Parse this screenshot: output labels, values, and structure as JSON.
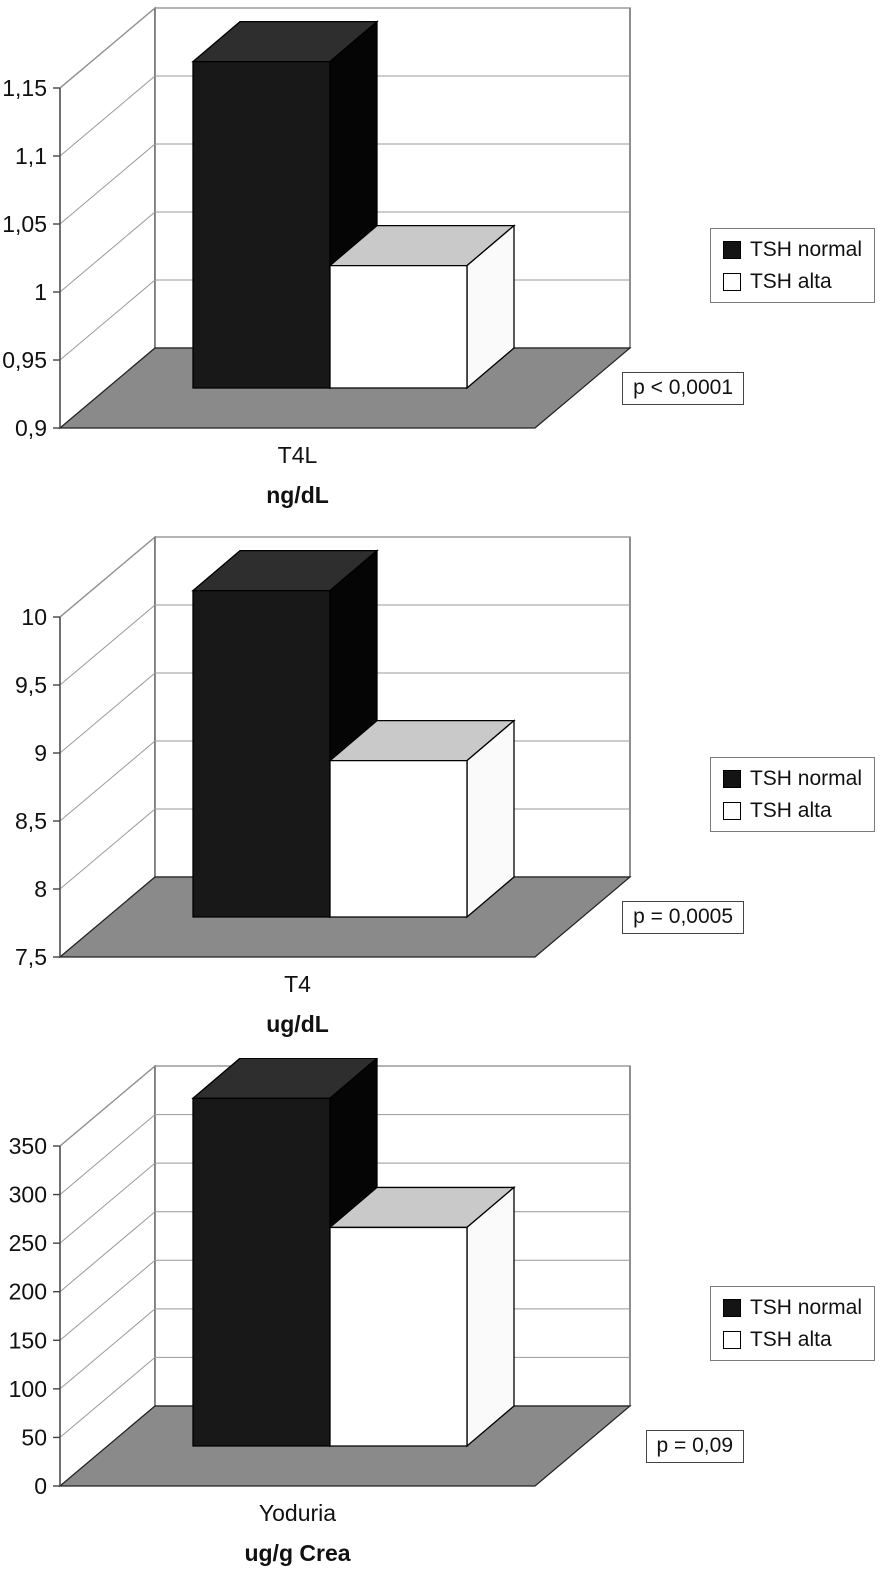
{
  "colors": {
    "background": "#ffffff",
    "floor": "#8a8a8a",
    "wall": "#ffffff",
    "grid": "#999999",
    "axis": "#444444",
    "bars": [
      {
        "front": "#181818",
        "top": "#2e2e2e",
        "side": "#050505"
      },
      {
        "front": "#ffffff",
        "top": "#c9c9c9",
        "side": "#fafafa"
      }
    ]
  },
  "chart_data": [
    {
      "type": "bar",
      "projection": "3d",
      "categories": [
        "T4L"
      ],
      "category_label": "T4L",
      "ylabel": "ng/dL",
      "ylim": [
        0.9,
        1.15
      ],
      "yticks": {
        "labels": [
          "0,9",
          "0,95",
          "1",
          "1,05",
          "1,1",
          "1,15"
        ],
        "values": [
          0.9,
          0.95,
          1,
          1.05,
          1.1,
          1.15
        ]
      },
      "series": [
        {
          "name": "TSH normal",
          "values": [
            1.14
          ]
        },
        {
          "name": "TSH alta",
          "values": [
            0.99
          ]
        }
      ],
      "annotation": "p < 0,0001",
      "legend_position": "right",
      "grid": true
    },
    {
      "type": "bar",
      "projection": "3d",
      "categories": [
        "T4"
      ],
      "category_label": "T4",
      "ylabel": "ug/dL",
      "ylim": [
        7.5,
        10
      ],
      "yticks": {
        "labels": [
          "7,5",
          "8",
          "8,5",
          "9",
          "9,5",
          "10"
        ],
        "values": [
          7.5,
          8,
          8.5,
          9,
          9.5,
          10
        ]
      },
      "series": [
        {
          "name": "TSH normal",
          "values": [
            9.9
          ]
        },
        {
          "name": "TSH alta",
          "values": [
            8.65
          ]
        }
      ],
      "annotation": "p = 0,0005",
      "legend_position": "right",
      "grid": true
    },
    {
      "type": "bar",
      "projection": "3d",
      "categories": [
        "Yoduria"
      ],
      "category_label": "Yoduria",
      "ylabel": "ug/g Crea",
      "ylim": [
        0,
        350
      ],
      "yticks": {
        "labels": [
          "0",
          "50",
          "100",
          "150",
          "200",
          "250",
          "300",
          "350"
        ],
        "values": [
          0,
          50,
          100,
          150,
          200,
          250,
          300,
          350
        ]
      },
      "series": [
        {
          "name": "TSH normal",
          "values": [
            358
          ]
        },
        {
          "name": "TSH alta",
          "values": [
            225
          ]
        }
      ],
      "annotation": "p = 0,09",
      "legend_position": "right",
      "grid": true
    }
  ]
}
